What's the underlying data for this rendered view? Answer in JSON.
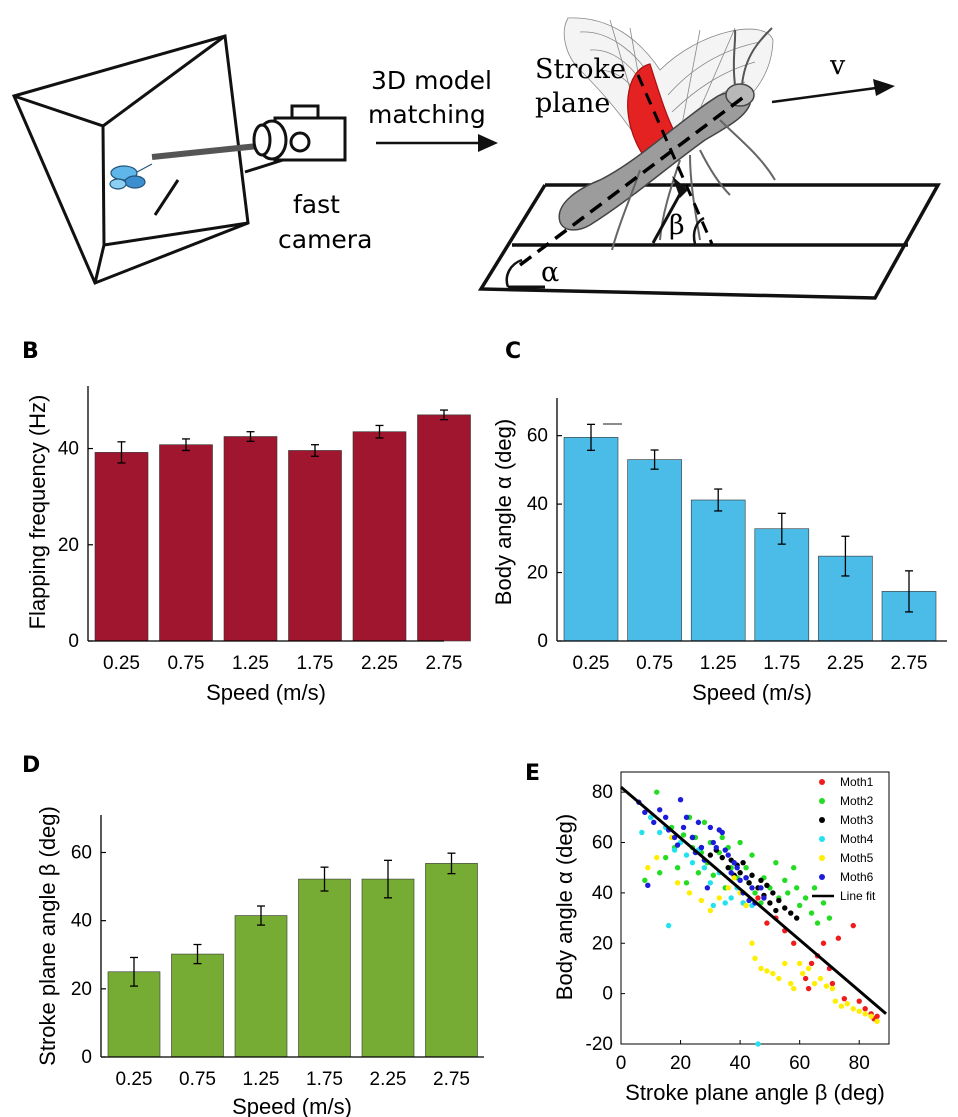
{
  "panels": {
    "B": "B",
    "C": "C",
    "D": "D",
    "E": "E"
  },
  "diagram": {
    "matching_line1": "3D model",
    "matching_line2": "matching",
    "camera_line1": "fast",
    "camera_line2": "camera",
    "stroke_line1": "Stroke",
    "stroke_line2": "plane",
    "velocity": "v",
    "beta": "β",
    "alpha": "α"
  },
  "colors": {
    "panelB": "#a0162f",
    "panelC": "#4bbbe8",
    "panelD": "#77ac34",
    "wing": "#e52222"
  },
  "chart_data": [
    {
      "panel": "B",
      "type": "bar",
      "color": "#a0162f",
      "categories": [
        "0.25",
        "0.75",
        "1.25",
        "1.75",
        "2.25",
        "2.75"
      ],
      "values": [
        39.2,
        40.8,
        42.5,
        39.6,
        43.5,
        47.0
      ],
      "errors": [
        2.2,
        1.2,
        1.0,
        1.2,
        1.3,
        1.0
      ],
      "xlabel": "Speed (m/s)",
      "ylabel": "Flapping frequency (Hz)",
      "ylim": [
        0,
        53
      ],
      "yticks": [
        0,
        20,
        40
      ]
    },
    {
      "panel": "C",
      "type": "bar",
      "color": "#4bbbe8",
      "categories": [
        "0.25",
        "0.75",
        "1.25",
        "1.75",
        "2.25",
        "2.75"
      ],
      "values": [
        59.5,
        53.0,
        41.2,
        32.8,
        24.8,
        14.5
      ],
      "errors": [
        3.8,
        2.8,
        3.2,
        4.5,
        5.8,
        6.0
      ],
      "xlabel": "Speed (m/s)",
      "ylabel": "Body angle α (deg)",
      "ylim": [
        0,
        71
      ],
      "yticks": [
        0,
        20,
        40,
        60
      ]
    },
    {
      "panel": "D",
      "type": "bar",
      "color": "#77ac34",
      "categories": [
        "0.25",
        "0.75",
        "1.25",
        "1.75",
        "2.25",
        "2.75"
      ],
      "values": [
        25.0,
        30.2,
        41.5,
        52.2,
        52.2,
        56.8
      ],
      "errors": [
        4.2,
        2.8,
        2.8,
        3.5,
        5.5,
        3.0
      ],
      "xlabel": "Speed (m/s)",
      "ylabel": "Stroke plane angle β (deg)",
      "ylim": [
        0,
        71
      ],
      "yticks": [
        0,
        20,
        40,
        60
      ]
    },
    {
      "panel": "E",
      "type": "scatter",
      "xlabel": "Stroke plane angle β (deg)",
      "ylabel": "Body angle α (deg)",
      "xlim": [
        0,
        90
      ],
      "ylim": [
        -20,
        88
      ],
      "xticks": [
        0,
        20,
        40,
        60,
        80
      ],
      "yticks": [
        -20,
        0,
        20,
        40,
        60,
        80
      ],
      "legend_position": "top-right",
      "series": [
        {
          "name": "Moth1",
          "color": "#ee1c1c",
          "points": [
            [
              41,
              36
            ],
            [
              46,
              38
            ],
            [
              49,
              28
            ],
            [
              52,
              30
            ],
            [
              55,
              25
            ],
            [
              58,
              20
            ],
            [
              62,
              6
            ],
            [
              63,
              2
            ],
            [
              64,
              12
            ],
            [
              66,
              15
            ],
            [
              68,
              20
            ],
            [
              70,
              10
            ],
            [
              71,
              4
            ],
            [
              73,
              22
            ],
            [
              75,
              -2
            ],
            [
              78,
              27
            ],
            [
              80,
              -3
            ],
            [
              82,
              -6
            ],
            [
              84,
              -8
            ],
            [
              85,
              -10
            ],
            [
              86,
              -9
            ]
          ]
        },
        {
          "name": "Moth2",
          "color": "#22dd22",
          "points": [
            [
              8,
              45
            ],
            [
              10,
              70
            ],
            [
              12,
              80
            ],
            [
              13,
              48
            ],
            [
              15,
              54
            ],
            [
              17,
              66
            ],
            [
              18,
              58
            ],
            [
              19,
              50
            ],
            [
              21,
              63
            ],
            [
              22,
              44
            ],
            [
              23,
              70
            ],
            [
              24,
              58
            ],
            [
              25,
              62
            ],
            [
              26,
              48
            ],
            [
              27,
              56
            ],
            [
              28,
              68
            ],
            [
              29,
              52
            ],
            [
              30,
              60
            ],
            [
              31,
              47
            ],
            [
              33,
              56
            ],
            [
              34,
              62
            ],
            [
              35,
              42
            ],
            [
              36,
              58
            ],
            [
              37,
              50
            ],
            [
              39,
              46
            ],
            [
              40,
              60
            ],
            [
              42,
              50
            ],
            [
              43,
              44
            ],
            [
              44,
              55
            ],
            [
              45,
              40
            ],
            [
              47,
              36
            ],
            [
              48,
              46
            ],
            [
              50,
              42
            ],
            [
              52,
              52
            ],
            [
              53,
              38
            ],
            [
              55,
              45
            ],
            [
              56,
              40
            ],
            [
              58,
              50
            ],
            [
              59,
              42
            ],
            [
              60,
              35
            ],
            [
              62,
              38
            ],
            [
              64,
              32
            ],
            [
              65,
              42
            ],
            [
              66,
              28
            ],
            [
              68,
              36
            ],
            [
              70,
              30
            ]
          ]
        },
        {
          "name": "Moth3",
          "color": "#000000",
          "points": [
            [
              24,
              62
            ],
            [
              27,
              58
            ],
            [
              30,
              55
            ],
            [
              32,
              57
            ],
            [
              34,
              54
            ],
            [
              36,
              50
            ],
            [
              37,
              53
            ],
            [
              38,
              47
            ],
            [
              39,
              51
            ],
            [
              40,
              48
            ],
            [
              41,
              52
            ],
            [
              42,
              46
            ],
            [
              43,
              44
            ],
            [
              44,
              47
            ],
            [
              46,
              42
            ],
            [
              47,
              45
            ],
            [
              48,
              39
            ],
            [
              49,
              43
            ],
            [
              50,
              36
            ],
            [
              51,
              40
            ],
            [
              52,
              33
            ],
            [
              53,
              37
            ],
            [
              55,
              34
            ],
            [
              57,
              32
            ],
            [
              59,
              30
            ]
          ]
        },
        {
          "name": "Moth4",
          "color": "#22e2ee",
          "points": [
            [
              7,
              64
            ],
            [
              10,
              70
            ],
            [
              13,
              64
            ],
            [
              15,
              66
            ],
            [
              16,
              27
            ],
            [
              18,
              57
            ],
            [
              20,
              60
            ],
            [
              22,
              55
            ],
            [
              24,
              52
            ],
            [
              26,
              57
            ],
            [
              28,
              50
            ],
            [
              30,
              44
            ],
            [
              31,
              35
            ],
            [
              33,
              48
            ],
            [
              35,
              36
            ],
            [
              37,
              38
            ],
            [
              39,
              42
            ],
            [
              41,
              36
            ],
            [
              44,
              35
            ],
            [
              46,
              -20
            ]
          ]
        },
        {
          "name": "Moth5",
          "color": "#ffee00",
          "points": [
            [
              9,
              50
            ],
            [
              12,
              54
            ],
            [
              17,
              62
            ],
            [
              19,
              44
            ],
            [
              23,
              40
            ],
            [
              27,
              37
            ],
            [
              30,
              33
            ],
            [
              33,
              38
            ],
            [
              36,
              42
            ],
            [
              38,
              46
            ],
            [
              40,
              40
            ],
            [
              42,
              35
            ],
            [
              44,
              20
            ],
            [
              45,
              14
            ],
            [
              47,
              10
            ],
            [
              49,
              9
            ],
            [
              51,
              8
            ],
            [
              53,
              6
            ],
            [
              55,
              12
            ],
            [
              57,
              4
            ],
            [
              58,
              2
            ],
            [
              60,
              12
            ],
            [
              61,
              8
            ],
            [
              63,
              10
            ],
            [
              65,
              4
            ],
            [
              67,
              6
            ],
            [
              69,
              3
            ],
            [
              71,
              2
            ],
            [
              72,
              -3
            ],
            [
              74,
              -5
            ],
            [
              76,
              -4
            ],
            [
              78,
              -6
            ],
            [
              80,
              -7
            ],
            [
              82,
              -8
            ],
            [
              84,
              -9
            ],
            [
              86,
              -11
            ]
          ]
        },
        {
          "name": "Moth6",
          "color": "#1c1cdd",
          "points": [
            [
              6,
              76
            ],
            [
              8,
              72
            ],
            [
              9,
              43
            ],
            [
              11,
              68
            ],
            [
              13,
              73
            ],
            [
              15,
              70
            ],
            [
              16,
              65
            ],
            [
              18,
              62
            ],
            [
              19,
              59
            ],
            [
              20,
              77
            ],
            [
              21,
              66
            ],
            [
              22,
              70
            ],
            [
              24,
              62
            ],
            [
              25,
              56
            ],
            [
              26,
              68
            ],
            [
              27,
              58
            ],
            [
              28,
              53
            ],
            [
              29,
              42
            ],
            [
              30,
              66
            ],
            [
              31,
              60
            ],
            [
              32,
              58
            ],
            [
              33,
              65
            ],
            [
              34,
              64
            ],
            [
              35,
              57
            ],
            [
              36,
              55
            ],
            [
              37,
              48
            ],
            [
              38,
              52
            ],
            [
              39,
              50
            ],
            [
              40,
              45
            ],
            [
              41,
              40
            ],
            [
              42,
              46
            ],
            [
              43,
              37
            ],
            [
              44,
              42
            ],
            [
              45,
              36
            ],
            [
              47,
              42
            ],
            [
              48,
              38
            ]
          ]
        }
      ],
      "fit": {
        "name": "Line fit",
        "x": [
          0,
          89
        ],
        "y": [
          82,
          -8
        ]
      }
    }
  ]
}
